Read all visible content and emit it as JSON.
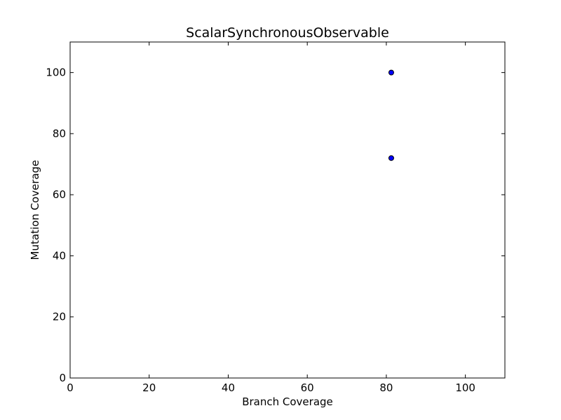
{
  "chart_data": {
    "type": "scatter",
    "title": "ScalarSynchronousObservable",
    "xlabel": "Branch Coverage",
    "ylabel": "Mutation Coverage",
    "xlim": [
      0,
      110
    ],
    "ylim": [
      0,
      110
    ],
    "xticks": [
      0,
      20,
      40,
      60,
      80,
      100
    ],
    "yticks": [
      0,
      20,
      40,
      60,
      80,
      100
    ],
    "grid": false,
    "legend": false,
    "marker_color": "#0000ff",
    "marker_edge_color": "#000000",
    "points": [
      {
        "x": 81.25,
        "y": 100
      },
      {
        "x": 81.25,
        "y": 72
      }
    ]
  }
}
